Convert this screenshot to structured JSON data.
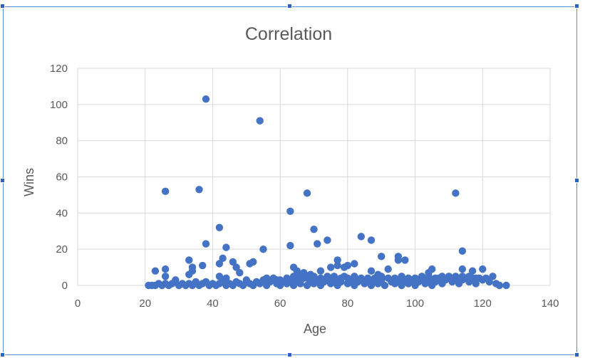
{
  "chart_data": {
    "type": "scatter",
    "title": "Correlation",
    "xlabel": "Age",
    "ylabel": "Wins",
    "xlim": [
      0,
      140
    ],
    "ylim": [
      0,
      120
    ],
    "x_ticks": [
      0,
      20,
      40,
      60,
      80,
      100,
      120,
      140
    ],
    "y_ticks": [
      0,
      20,
      40,
      60,
      80,
      100,
      120
    ],
    "grid": true,
    "legend": "none",
    "marker_color": "#4472c4",
    "series": [
      {
        "points": [
          [
            38,
            103
          ],
          [
            54,
            91
          ],
          [
            26,
            52
          ],
          [
            36,
            53
          ],
          [
            68,
            51
          ],
          [
            112,
            51
          ],
          [
            63,
            41
          ],
          [
            42,
            32
          ],
          [
            70,
            31
          ],
          [
            84,
            27
          ],
          [
            87,
            25
          ],
          [
            74,
            25
          ],
          [
            38,
            23
          ],
          [
            63,
            22
          ],
          [
            71,
            23
          ],
          [
            44,
            21
          ],
          [
            55,
            20
          ],
          [
            114,
            19
          ],
          [
            90,
            16
          ],
          [
            95,
            16
          ],
          [
            97,
            14
          ],
          [
            95,
            14
          ],
          [
            77,
            14
          ],
          [
            33,
            14
          ],
          [
            43,
            15
          ],
          [
            82,
            12
          ],
          [
            80,
            11
          ],
          [
            77,
            11
          ],
          [
            75,
            10
          ],
          [
            34,
            10
          ],
          [
            34,
            8
          ],
          [
            46,
            13
          ],
          [
            51,
            12
          ],
          [
            52,
            13
          ],
          [
            42,
            12
          ],
          [
            47,
            10
          ],
          [
            64,
            10
          ],
          [
            65,
            8
          ],
          [
            105,
            9
          ],
          [
            114,
            9
          ],
          [
            117,
            8
          ],
          [
            120,
            9
          ],
          [
            26,
            9
          ],
          [
            23,
            8
          ],
          [
            37,
            11
          ],
          [
            48,
            7
          ],
          [
            87,
            8
          ],
          [
            92,
            9
          ],
          [
            79,
            10
          ],
          [
            72,
            8
          ],
          [
            67,
            7
          ],
          [
            66,
            6
          ],
          [
            69,
            6
          ],
          [
            89,
            6
          ],
          [
            104,
            7
          ],
          [
            33,
            6
          ],
          [
            26,
            5
          ],
          [
            42,
            5
          ],
          [
            44,
            4
          ],
          [
            59,
            3
          ],
          [
            21,
            0
          ],
          [
            22,
            0
          ],
          [
            23,
            0
          ],
          [
            24,
            1
          ],
          [
            25,
            0
          ],
          [
            26,
            1
          ],
          [
            27,
            0
          ],
          [
            28,
            1
          ],
          [
            29,
            3
          ],
          [
            30,
            0
          ],
          [
            31,
            1
          ],
          [
            32,
            0
          ],
          [
            33,
            1
          ],
          [
            34,
            0
          ],
          [
            35,
            2
          ],
          [
            36,
            0
          ],
          [
            37,
            1
          ],
          [
            38,
            2
          ],
          [
            39,
            0
          ],
          [
            40,
            1
          ],
          [
            41,
            0
          ],
          [
            42,
            1
          ],
          [
            43,
            2
          ],
          [
            44,
            0
          ],
          [
            45,
            1
          ],
          [
            46,
            0
          ],
          [
            47,
            2
          ],
          [
            48,
            1
          ],
          [
            49,
            0
          ],
          [
            50,
            3
          ],
          [
            51,
            1
          ],
          [
            52,
            0
          ],
          [
            53,
            2
          ],
          [
            54,
            1
          ],
          [
            55,
            3
          ],
          [
            56,
            0
          ],
          [
            57,
            2
          ],
          [
            58,
            3
          ],
          [
            59,
            1
          ],
          [
            60,
            0
          ],
          [
            61,
            2
          ],
          [
            62,
            1
          ],
          [
            63,
            3
          ],
          [
            64,
            0
          ],
          [
            65,
            2
          ],
          [
            66,
            1
          ],
          [
            67,
            4
          ],
          [
            68,
            0
          ],
          [
            69,
            2
          ],
          [
            70,
            1
          ],
          [
            71,
            3
          ],
          [
            72,
            0
          ],
          [
            73,
            2
          ],
          [
            74,
            4
          ],
          [
            75,
            1
          ],
          [
            76,
            3
          ],
          [
            77,
            0
          ],
          [
            78,
            2
          ],
          [
            79,
            5
          ],
          [
            80,
            1
          ],
          [
            81,
            3
          ],
          [
            82,
            0
          ],
          [
            83,
            2
          ],
          [
            84,
            4
          ],
          [
            85,
            1
          ],
          [
            86,
            3
          ],
          [
            87,
            0
          ],
          [
            88,
            2
          ],
          [
            89,
            1
          ],
          [
            90,
            3
          ],
          [
            91,
            0
          ],
          [
            92,
            4
          ],
          [
            93,
            2
          ],
          [
            94,
            1
          ],
          [
            95,
            3
          ],
          [
            96,
            0
          ],
          [
            97,
            2
          ],
          [
            98,
            1
          ],
          [
            99,
            3
          ],
          [
            100,
            0
          ],
          [
            101,
            2
          ],
          [
            102,
            4
          ],
          [
            103,
            1
          ],
          [
            104,
            3
          ],
          [
            105,
            0
          ],
          [
            106,
            2
          ],
          [
            107,
            4
          ],
          [
            108,
            1
          ],
          [
            109,
            3
          ],
          [
            110,
            5
          ],
          [
            111,
            2
          ],
          [
            112,
            4
          ],
          [
            113,
            1
          ],
          [
            114,
            3
          ],
          [
            115,
            4
          ],
          [
            116,
            2
          ],
          [
            117,
            4
          ],
          [
            118,
            1
          ],
          [
            119,
            4
          ],
          [
            120,
            3
          ],
          [
            121,
            4
          ],
          [
            122,
            2
          ],
          [
            123,
            5
          ],
          [
            124,
            1
          ],
          [
            125,
            0
          ],
          [
            127,
            0
          ],
          [
            62,
            4
          ],
          [
            66,
            4
          ],
          [
            70,
            5
          ],
          [
            74,
            5
          ],
          [
            78,
            4
          ],
          [
            82,
            5
          ],
          [
            86,
            4
          ],
          [
            90,
            5
          ],
          [
            94,
            4
          ],
          [
            98,
            4
          ],
          [
            102,
            5
          ],
          [
            106,
            4
          ],
          [
            110,
            4
          ],
          [
            114,
            5
          ],
          [
            118,
            4
          ],
          [
            56,
            4
          ],
          [
            58,
            4
          ],
          [
            60,
            3
          ],
          [
            64,
            5
          ],
          [
            68,
            4
          ],
          [
            72,
            4
          ],
          [
            76,
            5
          ],
          [
            80,
            4
          ],
          [
            84,
            3
          ],
          [
            88,
            4
          ],
          [
            96,
            5
          ],
          [
            100,
            4
          ],
          [
            104,
            5
          ],
          [
            108,
            5
          ],
          [
            112,
            5
          ],
          [
            116,
            5
          ]
        ]
      }
    ]
  }
}
